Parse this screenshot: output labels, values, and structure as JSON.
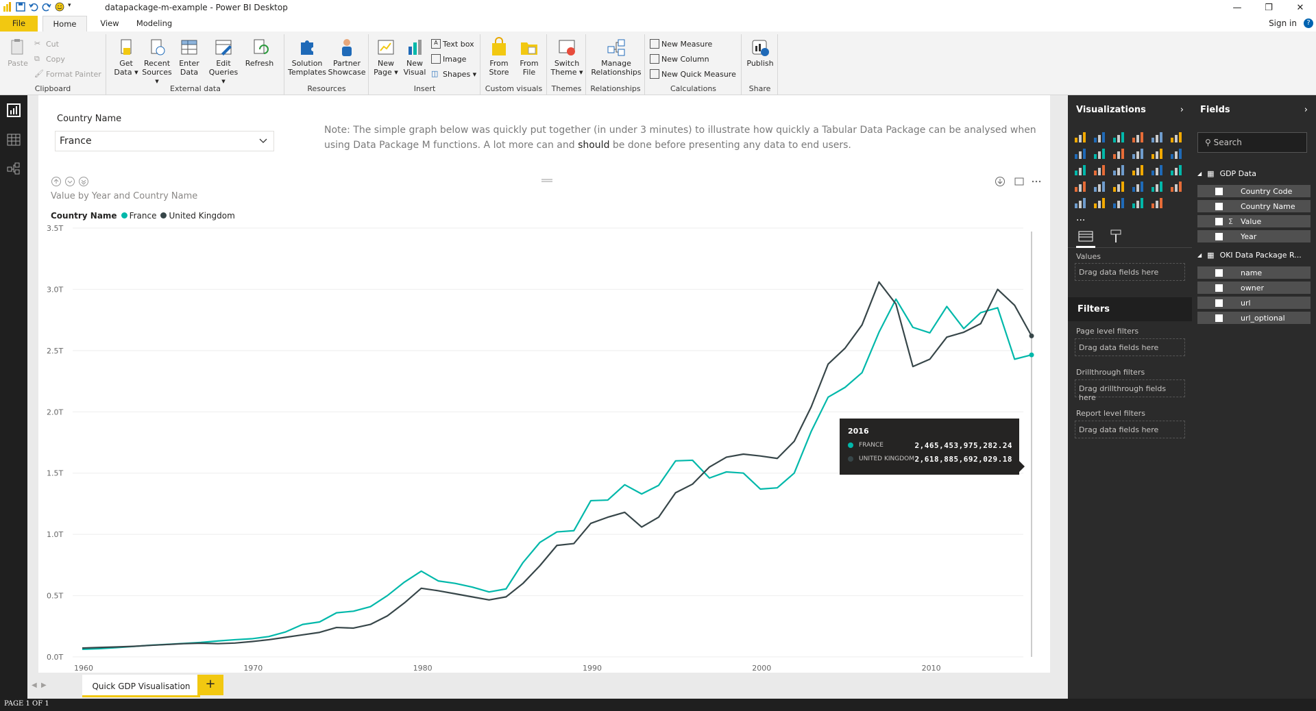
{
  "window": {
    "title": "datapackage-m-example - Power BI Desktop",
    "signin": "Sign in",
    "help": "?"
  },
  "tabs": [
    {
      "label": "File"
    },
    {
      "label": "Home"
    },
    {
      "label": "View"
    },
    {
      "label": "Modeling"
    }
  ],
  "ribbon": {
    "clipboard": {
      "paste": "Paste",
      "cut": "Cut",
      "copy": "Copy",
      "format_painter": "Format Painter",
      "label": "Clipboard"
    },
    "external": {
      "get_data": "Get Data ▾",
      "recent": "Recent Sources ▾",
      "enter": "Enter Data",
      "edit": "Edit Queries ▾",
      "refresh": "Refresh",
      "label": "External data"
    },
    "resources": {
      "solution": "Solution Templates",
      "partner": "Partner Showcase",
      "label": "Resources"
    },
    "insert": {
      "new_page": "New Page ▾",
      "new_visual": "New Visual",
      "text_box": "Text box",
      "image": "Image",
      "shapes": "Shapes ▾",
      "label": "Insert"
    },
    "custom": {
      "from_store": "From Store",
      "from_file": "From File",
      "label": "Custom visuals"
    },
    "themes": {
      "switch": "Switch Theme ▾",
      "label": "Themes"
    },
    "relationships": {
      "manage": "Manage Relationships",
      "label": "Relationships"
    },
    "calculations": {
      "new_measure": "New Measure",
      "new_column": "New Column",
      "new_quick": "New Quick Measure",
      "label": "Calculations"
    },
    "share": {
      "publish": "Publish",
      "label": "Share"
    }
  },
  "slicer": {
    "label": "Country Name",
    "value": "France"
  },
  "note": {
    "pre": "Note: The simple graph below was quickly put together (in under 3 minutes) to illustrate how quickly a Tabular Data Package can be analysed when using Data Package M functions. A lot more can and ",
    "bold": "should",
    "post": " be done before presenting any data to end users."
  },
  "visual": {
    "title": "Value by Year and Country Name",
    "legend_title": "Country Name"
  },
  "chart_data": {
    "type": "line",
    "title": "Value by Year and Country Name",
    "xlabel": "",
    "ylabel": "",
    "xlim": [
      1960,
      2016
    ],
    "ylim": [
      0,
      3.5
    ],
    "x_ticks": [
      1960,
      1970,
      1980,
      1990,
      2000,
      2010
    ],
    "y_ticks": [
      "0.0T",
      "0.5T",
      "1.0T",
      "1.5T",
      "2.0T",
      "2.5T",
      "3.0T",
      "3.5T"
    ],
    "legend_position": "top-left",
    "grid": true,
    "x": [
      1960,
      1961,
      1962,
      1963,
      1964,
      1965,
      1966,
      1967,
      1968,
      1969,
      1970,
      1971,
      1972,
      1973,
      1974,
      1975,
      1976,
      1977,
      1978,
      1979,
      1980,
      1981,
      1982,
      1983,
      1984,
      1985,
      1986,
      1987,
      1988,
      1989,
      1990,
      1991,
      1992,
      1993,
      1994,
      1995,
      1996,
      1997,
      1998,
      1999,
      2000,
      2001,
      2002,
      2003,
      2004,
      2005,
      2006,
      2007,
      2008,
      2009,
      2010,
      2011,
      2012,
      2013,
      2014,
      2015,
      2016
    ],
    "series": [
      {
        "name": "France",
        "color": "#01b8aa",
        "values": [
          0.062,
          0.067,
          0.075,
          0.085,
          0.095,
          0.102,
          0.11,
          0.118,
          0.13,
          0.14,
          0.148,
          0.166,
          0.204,
          0.265,
          0.285,
          0.36,
          0.373,
          0.41,
          0.5,
          0.61,
          0.7,
          0.62,
          0.6,
          0.57,
          0.53,
          0.555,
          0.77,
          0.935,
          1.02,
          1.03,
          1.275,
          1.28,
          1.405,
          1.33,
          1.4,
          1.6,
          1.605,
          1.46,
          1.51,
          1.5,
          1.37,
          1.38,
          1.5,
          1.84,
          2.12,
          2.2,
          2.32,
          2.65,
          2.92,
          2.69,
          2.645,
          2.86,
          2.68,
          2.81,
          2.85,
          2.43,
          2.465
        ]
      },
      {
        "name": "United Kingdom",
        "color": "#374649",
        "values": [
          0.072,
          0.077,
          0.081,
          0.086,
          0.094,
          0.101,
          0.108,
          0.112,
          0.108,
          0.113,
          0.125,
          0.14,
          0.16,
          0.18,
          0.2,
          0.24,
          0.235,
          0.265,
          0.335,
          0.44,
          0.56,
          0.54,
          0.515,
          0.49,
          0.465,
          0.49,
          0.6,
          0.745,
          0.91,
          0.925,
          1.09,
          1.14,
          1.18,
          1.06,
          1.14,
          1.34,
          1.41,
          1.55,
          1.63,
          1.655,
          1.64,
          1.62,
          1.76,
          2.04,
          2.39,
          2.52,
          2.71,
          3.06,
          2.88,
          2.37,
          2.43,
          2.61,
          2.65,
          2.72,
          3.0,
          2.87,
          2.62
        ]
      }
    ]
  },
  "tooltip": {
    "year": "2016",
    "rows": [
      {
        "label": "FRANCE",
        "value": "2,465,453,975,282.24",
        "color": "#01b8aa"
      },
      {
        "label": "UNITED KINGDOM",
        "value": "2,618,885,692,029.18",
        "color": "#374649"
      }
    ]
  },
  "page_tabs": [
    {
      "label": "Quick GDP Visualisation"
    }
  ],
  "add_page": "+",
  "status": "PAGE 1 OF 1",
  "viz_pane": {
    "title": "Visualizations",
    "values_label": "Values",
    "values_drop": "Drag data fields here",
    "more": "..."
  },
  "filters": {
    "title": "Filters",
    "page": "Page level filters",
    "page_drop": "Drag data fields here",
    "drill": "Drillthrough filters",
    "drill_drop": "Drag drillthrough fields here",
    "report": "Report level filters",
    "report_drop": "Drag data fields here"
  },
  "fields_pane": {
    "title": "Fields",
    "search": "Search",
    "tables": [
      {
        "name": "GDP Data",
        "fields": [
          {
            "name": "Country Code",
            "sigma": ""
          },
          {
            "name": "Country Name",
            "sigma": ""
          },
          {
            "name": "Value",
            "sigma": "Σ"
          },
          {
            "name": "Year",
            "sigma": ""
          }
        ]
      },
      {
        "name": "OKI Data Package R...",
        "fields": [
          {
            "name": "name"
          },
          {
            "name": "owner"
          },
          {
            "name": "url"
          },
          {
            "name": "url_optional"
          }
        ]
      }
    ]
  }
}
